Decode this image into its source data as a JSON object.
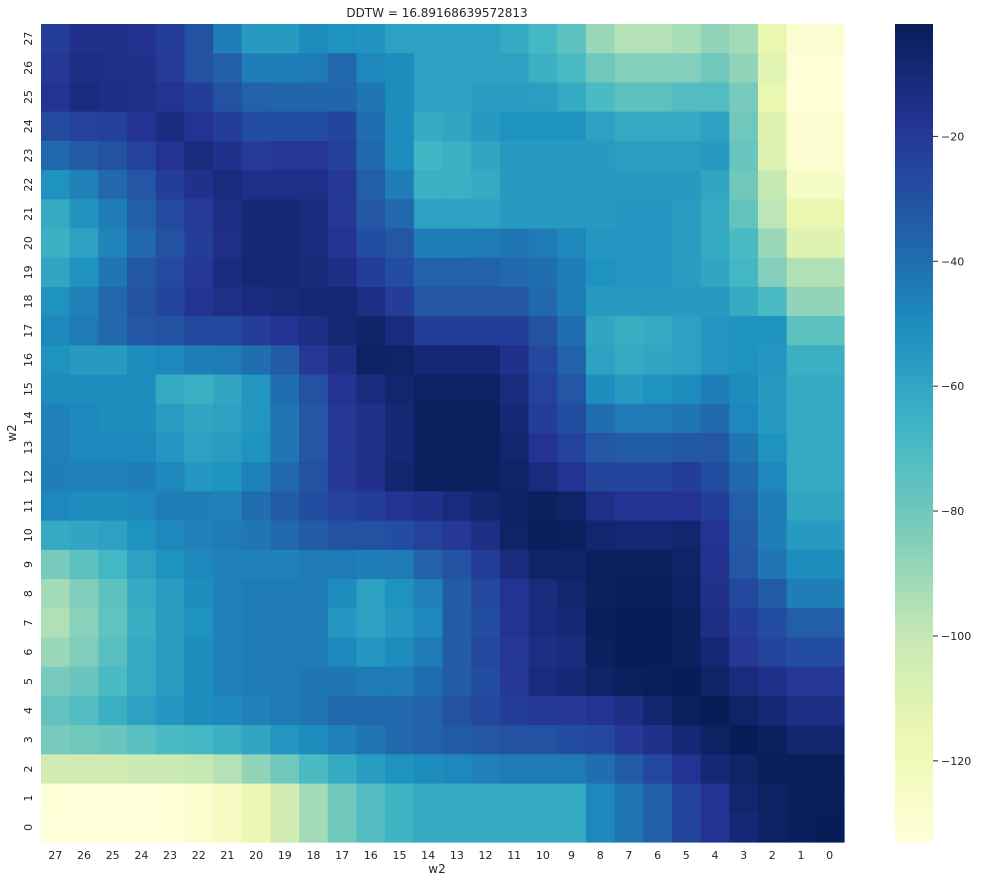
{
  "chart_data": {
    "type": "heatmap",
    "title": "DDTW = 16.89168639572813",
    "xlabel": "w2",
    "ylabel": "w2",
    "x_tick_labels": [
      "27",
      "26",
      "25",
      "24",
      "23",
      "22",
      "21",
      "20",
      "19",
      "18",
      "17",
      "16",
      "15",
      "14",
      "13",
      "12",
      "11",
      "10",
      "9",
      "8",
      "7",
      "6",
      "5",
      "4",
      "3",
      "2",
      "1",
      "0"
    ],
    "y_tick_labels": [
      "27",
      "26",
      "25",
      "24",
      "23",
      "22",
      "21",
      "20",
      "19",
      "18",
      "17",
      "16",
      "15",
      "14",
      "13",
      "12",
      "11",
      "10",
      "9",
      "8",
      "7",
      "6",
      "5",
      "4",
      "3",
      "2",
      "1",
      "0"
    ],
    "colorbar": {
      "colormap": "YlGnBu_r",
      "vmin": -133,
      "vmax": -2,
      "ticks": [
        -20,
        -40,
        -60,
        -80,
        -100,
        -120
      ],
      "tick_labels": [
        "−20",
        "−40",
        "−60",
        "−80",
        "−100",
        "−120"
      ]
    },
    "grid": false,
    "values": [
      [
        -22,
        -16,
        -16,
        -17,
        -22,
        -30,
        -45,
        -55,
        -55,
        -50,
        -52,
        -53,
        -58,
        -58,
        -58,
        -58,
        -62,
        -68,
        -75,
        -90,
        -96,
        -96,
        -93,
        -88,
        -92,
        -115,
        -130,
        -130
      ],
      [
        -20,
        -14,
        -15,
        -16,
        -21,
        -30,
        -35,
        -45,
        -45,
        -44,
        -38,
        -48,
        -50,
        -58,
        -58,
        -58,
        -58,
        -65,
        -70,
        -80,
        -85,
        -85,
        -85,
        -80,
        -88,
        -112,
        -132,
        -132
      ],
      [
        -18,
        -13,
        -14,
        -15,
        -18,
        -22,
        -30,
        -36,
        -37,
        -37,
        -37,
        -42,
        -50,
        -58,
        -58,
        -56,
        -56,
        -57,
        -62,
        -70,
        -75,
        -75,
        -72,
        -72,
        -82,
        -115,
        -132,
        -132
      ],
      [
        -27,
        -24,
        -23,
        -18,
        -13,
        -18,
        -22,
        -28,
        -28,
        -28,
        -25,
        -40,
        -50,
        -62,
        -60,
        -55,
        -52,
        -52,
        -52,
        -58,
        -62,
        -62,
        -62,
        -58,
        -80,
        -110,
        -130,
        -130
      ],
      [
        -38,
        -33,
        -30,
        -24,
        -18,
        -12,
        -16,
        -21,
        -19,
        -19,
        -23,
        -38,
        -50,
        -67,
        -65,
        -60,
        -55,
        -55,
        -55,
        -55,
        -57,
        -57,
        -57,
        -55,
        -78,
        -110,
        -130,
        -130
      ],
      [
        -52,
        -46,
        -38,
        -32,
        -22,
        -16,
        -12,
        -15,
        -15,
        -15,
        -20,
        -35,
        -45,
        -65,
        -65,
        -62,
        -55,
        -55,
        -55,
        -55,
        -55,
        -55,
        -55,
        -60,
        -80,
        -100,
        -125,
        -125
      ],
      [
        -62,
        -53,
        -45,
        -35,
        -27,
        -21,
        -14,
        -10,
        -10,
        -12,
        -20,
        -32,
        -38,
        -58,
        -58,
        -58,
        -55,
        -55,
        -55,
        -55,
        -54,
        -54,
        -56,
        -62,
        -77,
        -98,
        -115,
        -115
      ],
      [
        -65,
        -58,
        -47,
        -38,
        -30,
        -22,
        -15,
        -10,
        -10,
        -12,
        -18,
        -28,
        -32,
        -45,
        -45,
        -44,
        -42,
        -44,
        -48,
        -54,
        -54,
        -54,
        -56,
        -62,
        -70,
        -90,
        -110,
        -110
      ],
      [
        -60,
        -52,
        -42,
        -32,
        -27,
        -20,
        -13,
        -10,
        -10,
        -11,
        -14,
        -22,
        -28,
        -36,
        -36,
        -36,
        -38,
        -40,
        -45,
        -52,
        -54,
        -54,
        -56,
        -60,
        -68,
        -85,
        -95,
        -95
      ],
      [
        -52,
        -46,
        -38,
        -30,
        -25,
        -18,
        -15,
        -13,
        -11,
        -10,
        -9,
        -14,
        -22,
        -32,
        -32,
        -32,
        -32,
        -38,
        -45,
        -55,
        -55,
        -55,
        -55,
        -55,
        -62,
        -70,
        -88,
        -88
      ],
      [
        -48,
        -44,
        -38,
        -32,
        -30,
        -26,
        -26,
        -22,
        -18,
        -14,
        -9,
        -7,
        -12,
        -22,
        -22,
        -22,
        -22,
        -30,
        -40,
        -60,
        -64,
        -62,
        -58,
        -54,
        -52,
        -52,
        -75,
        -75
      ],
      [
        -52,
        -55,
        -55,
        -50,
        -48,
        -45,
        -44,
        -40,
        -34,
        -20,
        -14,
        -5,
        -6,
        -10,
        -10,
        -10,
        -16,
        -26,
        -36,
        -58,
        -62,
        -60,
        -58,
        -54,
        -52,
        -54,
        -65,
        -65
      ],
      [
        -50,
        -50,
        -50,
        -50,
        -62,
        -65,
        -60,
        -54,
        -40,
        -30,
        -18,
        -12,
        -8,
        -5,
        -5,
        -5,
        -12,
        -24,
        -32,
        -50,
        -55,
        -52,
        -50,
        -45,
        -50,
        -55,
        -62,
        -62
      ],
      [
        -46,
        -48,
        -50,
        -50,
        -56,
        -60,
        -58,
        -54,
        -42,
        -32,
        -20,
        -16,
        -10,
        -4,
        -4,
        -4,
        -10,
        -22,
        -28,
        -40,
        -44,
        -44,
        -42,
        -38,
        -48,
        -55,
        -62,
        -62
      ],
      [
        -46,
        -48,
        -48,
        -48,
        -54,
        -58,
        -56,
        -52,
        -42,
        -32,
        -20,
        -16,
        -10,
        -4,
        -4,
        -4,
        -8,
        -18,
        -24,
        -32,
        -34,
        -34,
        -32,
        -32,
        -42,
        -52,
        -62,
        -62
      ],
      [
        -45,
        -46,
        -46,
        -45,
        -48,
        -54,
        -52,
        -46,
        -38,
        -30,
        -20,
        -16,
        -8,
        -4,
        -4,
        -4,
        -6,
        -12,
        -18,
        -25,
        -25,
        -25,
        -22,
        -28,
        -38,
        -48,
        -62,
        -62
      ],
      [
        -48,
        -50,
        -50,
        -48,
        -45,
        -45,
        -46,
        -40,
        -34,
        -28,
        -24,
        -22,
        -18,
        -16,
        -12,
        -8,
        -5,
        -4,
        -6,
        -15,
        -18,
        -18,
        -18,
        -22,
        -35,
        -45,
        -60,
        -60
      ],
      [
        -62,
        -60,
        -58,
        -52,
        -48,
        -46,
        -44,
        -42,
        -38,
        -34,
        -30,
        -30,
        -28,
        -24,
        -20,
        -14,
        -6,
        -3,
        -4,
        -8,
        -10,
        -10,
        -8,
        -18,
        -33,
        -45,
        -55,
        -55
      ],
      [
        -82,
        -75,
        -68,
        -58,
        -52,
        -48,
        -46,
        -46,
        -46,
        -44,
        -44,
        -45,
        -44,
        -36,
        -30,
        -22,
        -12,
        -6,
        -6,
        -4,
        -4,
        -4,
        -6,
        -17,
        -32,
        -42,
        -50,
        -50
      ],
      [
        -92,
        -84,
        -75,
        -62,
        -56,
        -50,
        -46,
        -44,
        -44,
        -44,
        -50,
        -58,
        -52,
        -46,
        -34,
        -26,
        -18,
        -12,
        -8,
        -4,
        -3,
        -3,
        -5,
        -16,
        -26,
        -34,
        -45,
        -45
      ],
      [
        -95,
        -86,
        -76,
        -64,
        -56,
        -52,
        -46,
        -44,
        -44,
        -44,
        -54,
        -58,
        -54,
        -48,
        -34,
        -28,
        -18,
        -12,
        -10,
        -3,
        -2,
        -2,
        -4,
        -14,
        -22,
        -28,
        -35,
        -35
      ],
      [
        -90,
        -84,
        -74,
        -62,
        -56,
        -50,
        -46,
        -44,
        -44,
        -44,
        -48,
        -54,
        -50,
        -44,
        -34,
        -26,
        -20,
        -14,
        -12,
        -4,
        -2,
        -2,
        -4,
        -10,
        -20,
        -25,
        -28,
        -28
      ],
      [
        -82,
        -78,
        -70,
        -62,
        -56,
        -50,
        -46,
        -44,
        -44,
        -42,
        -42,
        -44,
        -44,
        -40,
        -34,
        -28,
        -20,
        -12,
        -10,
        -6,
        -4,
        -3,
        -2,
        -6,
        -12,
        -16,
        -20,
        -20
      ],
      [
        -76,
        -72,
        -65,
        -58,
        -54,
        -50,
        -48,
        -46,
        -44,
        -42,
        -38,
        -38,
        -38,
        -36,
        -30,
        -26,
        -22,
        -20,
        -20,
        -18,
        -14,
        -8,
        -4,
        -2,
        -6,
        -10,
        -14,
        -14
      ],
      [
        -82,
        -80,
        -78,
        -74,
        -70,
        -68,
        -65,
        -60,
        -54,
        -50,
        -46,
        -42,
        -38,
        -36,
        -34,
        -32,
        -30,
        -30,
        -28,
        -26,
        -20,
        -16,
        -10,
        -5,
        -2,
        -4,
        -8,
        -8
      ],
      [
        -104,
        -104,
        -104,
        -102,
        -102,
        -100,
        -96,
        -88,
        -80,
        -70,
        -62,
        -56,
        -52,
        -50,
        -48,
        -46,
        -44,
        -44,
        -44,
        -40,
        -34,
        -26,
        -18,
        -10,
        -6,
        -3,
        -3,
        -3
      ],
      [
        -132,
        -133,
        -133,
        -133,
        -132,
        -128,
        -124,
        -116,
        -104,
        -92,
        -80,
        -72,
        -66,
        -62,
        -62,
        -62,
        -62,
        -62,
        -62,
        -48,
        -42,
        -35,
        -25,
        -18,
        -8,
        -5,
        -3,
        -3
      ],
      [
        -133,
        -133,
        -133,
        -133,
        -132,
        -128,
        -124,
        -116,
        -104,
        -92,
        -80,
        -72,
        -66,
        -62,
        -62,
        -62,
        -62,
        -62,
        -62,
        -48,
        -42,
        -35,
        -25,
        -18,
        -10,
        -5,
        -3,
        -2
      ]
    ]
  }
}
